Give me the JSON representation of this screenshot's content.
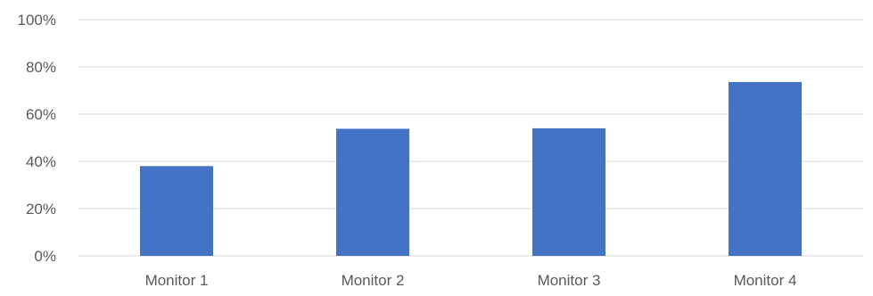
{
  "chart_data": {
    "type": "bar",
    "categories": [
      "Monitor 1",
      "Monitor 2",
      "Monitor 3",
      "Monitor 4"
    ],
    "values": [
      38,
      53.8,
      54,
      73.6
    ],
    "y_tick_labels": [
      "0%",
      "20%",
      "40%",
      "60%",
      "80%",
      "100%"
    ],
    "ylim": [
      0,
      100
    ],
    "y_unit": "%",
    "title": "",
    "xlabel": "",
    "ylabel": "",
    "grid": true,
    "legend": "none",
    "colors": {
      "bar": "#4472C4",
      "grid": "#D9D9D9",
      "axis_text": "#595959"
    }
  }
}
